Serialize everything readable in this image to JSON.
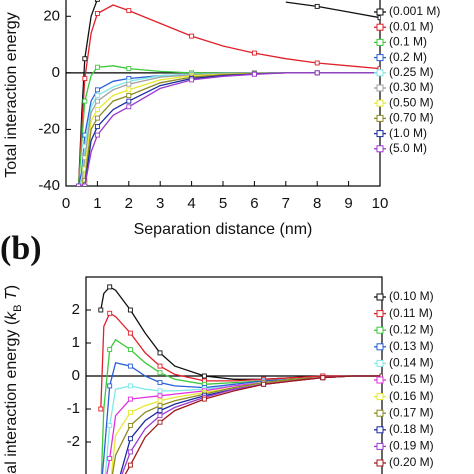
{
  "chart_data": [
    {
      "type": "line",
      "xlabel": "Separation distance (nm)",
      "ylabel": [
        "Total interaction energy"
      ],
      "xlim": [
        0,
        10
      ],
      "ylim": [
        -40,
        30
      ],
      "xticks": [
        0,
        1,
        2,
        3,
        4,
        5,
        6,
        7,
        8,
        9,
        10
      ],
      "yticks": [
        -40,
        -20,
        0,
        20
      ],
      "legend": "right",
      "x": [
        0.4,
        0.5,
        0.6,
        0.8,
        1,
        1.5,
        2,
        3,
        4,
        5,
        6,
        7,
        8,
        9,
        10
      ],
      "series": [
        {
          "name": "(0.001 M)",
          "color": "#111111",
          "values": [
            -40,
            -15,
            5,
            20,
            26,
            null,
            null,
            null,
            null,
            null,
            null,
            25,
            23.5,
            21.5,
            19.5
          ]
        },
        {
          "name": "(0.01 M)",
          "color": "#e0202a",
          "values": [
            -40,
            -20,
            -2,
            14,
            21,
            24,
            22,
            17.5,
            13,
            9.5,
            7,
            5,
            3.5,
            2.5,
            1.5
          ]
        },
        {
          "name": "(0.1 M)",
          "color": "#3cc83c",
          "values": [
            -40,
            -25,
            -10,
            -1,
            2,
            2.5,
            1.5,
            0.5,
            0,
            0,
            0,
            0,
            0,
            0,
            0
          ]
        },
        {
          "name": "(0.2 M)",
          "color": "#2a5fd8",
          "values": [
            -40,
            -35,
            -22,
            -10,
            -6,
            -3,
            -2,
            -1,
            -0.5,
            -0.2,
            0,
            0,
            0,
            0,
            0
          ]
        },
        {
          "name": "(0.25 M)",
          "color": "#7fe8ea",
          "values": [
            -40,
            -38,
            -26,
            -12,
            -8,
            -5,
            -3,
            -1,
            -0.5,
            -0.2,
            0,
            0,
            0,
            0,
            0
          ]
        },
        {
          "name": "(0.30 M)",
          "color": "#a0a0a0",
          "values": [
            -40,
            -40,
            -30,
            -14,
            -10,
            -6,
            -4,
            -1.5,
            -0.7,
            -0.3,
            0,
            0,
            0,
            0,
            0
          ]
        },
        {
          "name": "(0.50 M)",
          "color": "#e8e830",
          "values": [
            -40,
            -40,
            -34,
            -17,
            -13,
            -8,
            -6,
            -2.5,
            -1,
            -0.5,
            -0.2,
            0,
            0,
            0,
            0
          ]
        },
        {
          "name": "(0.70 M)",
          "color": "#8a8a20",
          "values": [
            -40,
            -40,
            -38,
            -20,
            -16,
            -10,
            -8,
            -3.5,
            -1.5,
            -0.7,
            -0.3,
            0,
            0,
            0,
            0
          ]
        },
        {
          "name": "(1.0 M)",
          "color": "#1a2aa0",
          "values": [
            -40,
            -40,
            -40,
            -24,
            -19,
            -13,
            -10,
            -4.5,
            -2,
            -1,
            -0.4,
            0,
            0,
            0,
            0
          ]
        },
        {
          "name": "(5.0 M)",
          "color": "#9a3ad0",
          "values": [
            -40,
            -40,
            -40,
            -28,
            -22,
            -15,
            -12,
            -5.5,
            -2.5,
            -1.2,
            -0.5,
            0,
            0,
            0,
            0
          ]
        }
      ]
    },
    {
      "type": "line",
      "label": "(b)",
      "ylabel": [
        "Total interaction energy (",
        "k",
        "B",
        " T",
        ")"
      ],
      "xlim": [
        0,
        10
      ],
      "ylim": [
        -3,
        3
      ],
      "yticks": [
        -2,
        -1,
        0,
        1,
        2
      ],
      "legend": "right",
      "x": [
        0.5,
        0.6,
        0.8,
        1,
        1.5,
        2,
        2.5,
        3,
        4,
        5,
        6,
        7,
        8,
        9,
        10
      ],
      "series": [
        {
          "name": "(0.10 M)",
          "color": "#111111",
          "values": [
            2.0,
            2.5,
            2.7,
            2.6,
            2.0,
            1.3,
            0.7,
            0.3,
            0,
            -0.1,
            -0.1,
            -0.05,
            0,
            0,
            0
          ]
        },
        {
          "name": "(0.11 M)",
          "color": "#e0202a",
          "values": [
            -1,
            1.5,
            1.9,
            1.8,
            1.3,
            0.7,
            0.3,
            0.05,
            -0.15,
            -0.15,
            -0.1,
            -0.05,
            0,
            0,
            0
          ]
        },
        {
          "name": "(0.12 M)",
          "color": "#3cc83c",
          "values": [
            -3.5,
            -1,
            0.8,
            1.1,
            0.8,
            0.4,
            0.1,
            -0.1,
            -0.25,
            -0.2,
            -0.15,
            -0.1,
            -0.05,
            0,
            0
          ]
        },
        {
          "name": "(0.13 M)",
          "color": "#2a5fd8",
          "values": [
            -3.5,
            -2.5,
            -0.3,
            0.4,
            0.3,
            0,
            -0.2,
            -0.3,
            -0.35,
            -0.25,
            -0.15,
            -0.1,
            -0.05,
            0,
            0
          ]
        },
        {
          "name": "(0.14 M)",
          "color": "#7fe8ea",
          "values": [
            -3.5,
            -3.5,
            -1.5,
            -0.4,
            -0.3,
            -0.4,
            -0.45,
            -0.45,
            -0.4,
            -0.3,
            -0.2,
            -0.1,
            -0.05,
            0,
            0
          ]
        },
        {
          "name": "(0.15 M)",
          "color": "#e030e0",
          "values": [
            -3.5,
            -3.5,
            -2.5,
            -1.2,
            -0.7,
            -0.65,
            -0.6,
            -0.55,
            -0.45,
            -0.3,
            -0.2,
            -0.1,
            -0.05,
            0,
            0
          ]
        },
        {
          "name": "(0.16 M)",
          "color": "#e8e830",
          "values": [
            -3.5,
            -3.5,
            -3.5,
            -1.8,
            -1.1,
            -0.9,
            -0.75,
            -0.65,
            -0.5,
            -0.35,
            -0.2,
            -0.1,
            -0.05,
            0,
            0
          ]
        },
        {
          "name": "(0.17 M)",
          "color": "#8a8a20",
          "values": [
            -3.5,
            -3.5,
            -3.5,
            -2.4,
            -1.5,
            -1.1,
            -0.9,
            -0.75,
            -0.55,
            -0.35,
            -0.2,
            -0.1,
            -0.05,
            0,
            0
          ]
        },
        {
          "name": "(0.18 M)",
          "color": "#1a2aa0",
          "values": [
            -3.5,
            -3.5,
            -3.5,
            -3.5,
            -1.9,
            -1.35,
            -1.05,
            -0.85,
            -0.6,
            -0.4,
            -0.25,
            -0.15,
            -0.05,
            0,
            0
          ]
        },
        {
          "name": "(0.19 M)",
          "color": "#9a3ad0",
          "values": [
            -3.5,
            -3.5,
            -3.5,
            -3.5,
            -2.3,
            -1.6,
            -1.2,
            -0.95,
            -0.65,
            -0.4,
            -0.25,
            -0.15,
            -0.05,
            0,
            0
          ]
        },
        {
          "name": "(0.20 M)",
          "color": "#a01818",
          "values": [
            -3.5,
            -3.5,
            -3.5,
            -3.5,
            -2.7,
            -1.85,
            -1.4,
            -1.05,
            -0.7,
            -0.45,
            -0.25,
            -0.15,
            -0.05,
            0,
            0
          ]
        }
      ]
    }
  ]
}
